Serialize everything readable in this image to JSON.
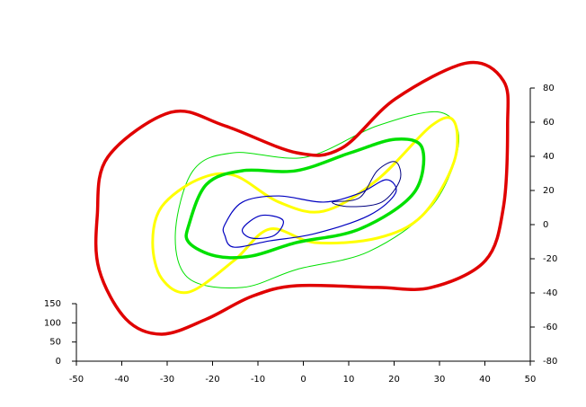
{
  "chart_data": {
    "type": "line",
    "xlim": [
      -50,
      50
    ],
    "xticks": [
      -50,
      -40,
      -30,
      -20,
      -10,
      0,
      10,
      20,
      30,
      40,
      50
    ],
    "ylim": [
      -80,
      80
    ],
    "yticks": [
      -80,
      -60,
      -40,
      -20,
      0,
      20,
      40,
      60,
      80
    ],
    "zlim": [
      0,
      150
    ],
    "zticks": [
      0,
      50,
      100,
      150
    ],
    "series": [
      {
        "color": "#00e000",
        "x": [
          -28.2,
          -24.3,
          -15.3,
          0.5,
          16.3,
          30.2,
          34.2,
          28.2,
          14.4,
          -1.5,
          -13.4,
          -25.2
        ],
        "values": [
          -5.3,
          31.6,
          42.1,
          39.5,
          57.9,
          65.8,
          47.4,
          10.5,
          -15.8,
          -26.3,
          -36.8,
          -31.6
        ]
      },
      {
        "color": "#ffff00",
        "x": [
          -31.2,
          -23.3,
          -15.3,
          -5.4,
          4.5,
          16.3,
          28.2,
          33.2,
          33.2,
          26.2,
          16.3,
          2.5,
          -7.4,
          -15.3,
          -25.2,
          -31.2,
          -33.2
        ],
        "values": [
          10.5,
          26.3,
          28.9,
          13.2,
          7.9,
          26.3,
          57.9,
          60.5,
          36.8,
          5.3,
          -7.9,
          -10.5,
          -2.6,
          -21.1,
          -39.5,
          -31.6,
          -10.5
        ]
      },
      {
        "color": "#00e000",
        "x": [
          -25.2,
          -21.3,
          -13.4,
          -1.5,
          10.4,
          20.3,
          26.2,
          24.3,
          12.4,
          -1.5,
          -11.4,
          -19.3,
          -25.2
        ],
        "values": [
          0,
          23.7,
          31.6,
          31.6,
          42.1,
          50,
          44.7,
          18.4,
          -2.6,
          -10.5,
          -18.4,
          -18.4,
          -10.5
        ]
      },
      {
        "color": "#0000c0",
        "x": [
          -17.3,
          -13.4,
          -5.4,
          4.5,
          12.4,
          18.3,
          20.3,
          14.4,
          2.5,
          -7.4,
          -15.3,
          -17.3
        ],
        "values": [
          0,
          13.2,
          16.8,
          13.2,
          18.4,
          26.3,
          18.4,
          5.3,
          -5.3,
          -9.5,
          -13.2,
          -6.3
        ]
      },
      {
        "color": "#000080",
        "x": [
          12.4,
          16.3,
          20.3,
          21.3,
          17.3,
          10.4,
          6.4
        ],
        "values": [
          15.8,
          31.6,
          36.8,
          26.3,
          13.2,
          10.5,
          13.2
        ]
      },
      {
        "color": "#0000c0",
        "x": [
          -13.4,
          -9.4,
          -4.5,
          -6.4,
          -11.4
        ],
        "values": [
          -2.6,
          5.3,
          2.6,
          -6.3,
          -7.9
        ]
      },
      {
        "color": "#e00000",
        "x": [
          -43.1,
          -29.2,
          -17.3,
          -1.5,
          8.4,
          20.3,
          36.1,
          44.1,
          45.0,
          44.1,
          40.1,
          28.2,
          16.3,
          -1.5,
          -11.4,
          -21.3,
          -31.2,
          -39.1,
          -45.0,
          -45.4
        ],
        "values": [
          39.5,
          65.8,
          57.9,
          42.1,
          44.7,
          73.7,
          94.7,
          84.2,
          57.9,
          10.5,
          -21.1,
          -36.8,
          -36.8,
          -35.8,
          -42.1,
          -55.3,
          -64.2,
          -55.3,
          -26.3,
          5.3
        ]
      }
    ]
  }
}
